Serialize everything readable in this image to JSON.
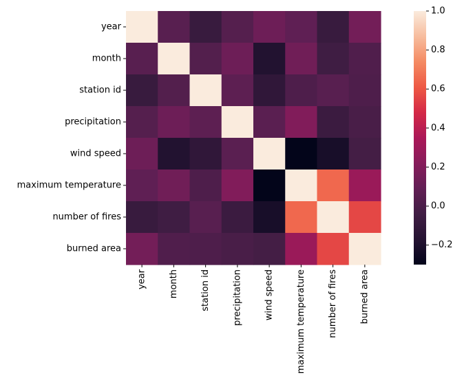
{
  "chart_data": {
    "type": "heatmap",
    "row_labels": [
      "year",
      "month",
      "station id",
      "precipitation",
      "wind speed",
      "maximum temperature",
      "number of fires",
      "burned area"
    ],
    "col_labels": [
      "year",
      "month",
      "station id",
      "precipitation",
      "wind speed",
      "maximum temperature",
      "number of fires",
      "burned area"
    ],
    "values": [
      [
        1.0,
        0.05,
        -0.08,
        0.04,
        0.13,
        0.08,
        -0.08,
        0.15
      ],
      [
        0.05,
        1.0,
        0.03,
        0.13,
        -0.18,
        0.14,
        -0.05,
        0.02
      ],
      [
        -0.08,
        0.03,
        1.0,
        0.07,
        -0.12,
        0.01,
        0.05,
        0.01
      ],
      [
        0.04,
        0.13,
        0.07,
        1.0,
        0.06,
        0.2,
        -0.07,
        -0.01
      ],
      [
        0.13,
        -0.18,
        -0.12,
        0.06,
        1.0,
        -0.3,
        -0.22,
        -0.03
      ],
      [
        0.08,
        0.14,
        0.01,
        0.2,
        -0.3,
        1.0,
        0.65,
        0.29
      ],
      [
        -0.08,
        -0.05,
        0.05,
        -0.07,
        -0.22,
        0.65,
        1.0,
        0.56
      ],
      [
        0.15,
        0.02,
        0.01,
        -0.01,
        -0.03,
        0.29,
        0.56,
        1.0
      ]
    ],
    "vmin": -0.3,
    "vmax": 1.0,
    "colorbar_ticks": [
      "−0.2",
      "0.0",
      "0.2",
      "0.4",
      "0.6",
      "0.8",
      "1.0"
    ],
    "colormap": "rocket",
    "title": "",
    "xlabel": "",
    "ylabel": ""
  }
}
